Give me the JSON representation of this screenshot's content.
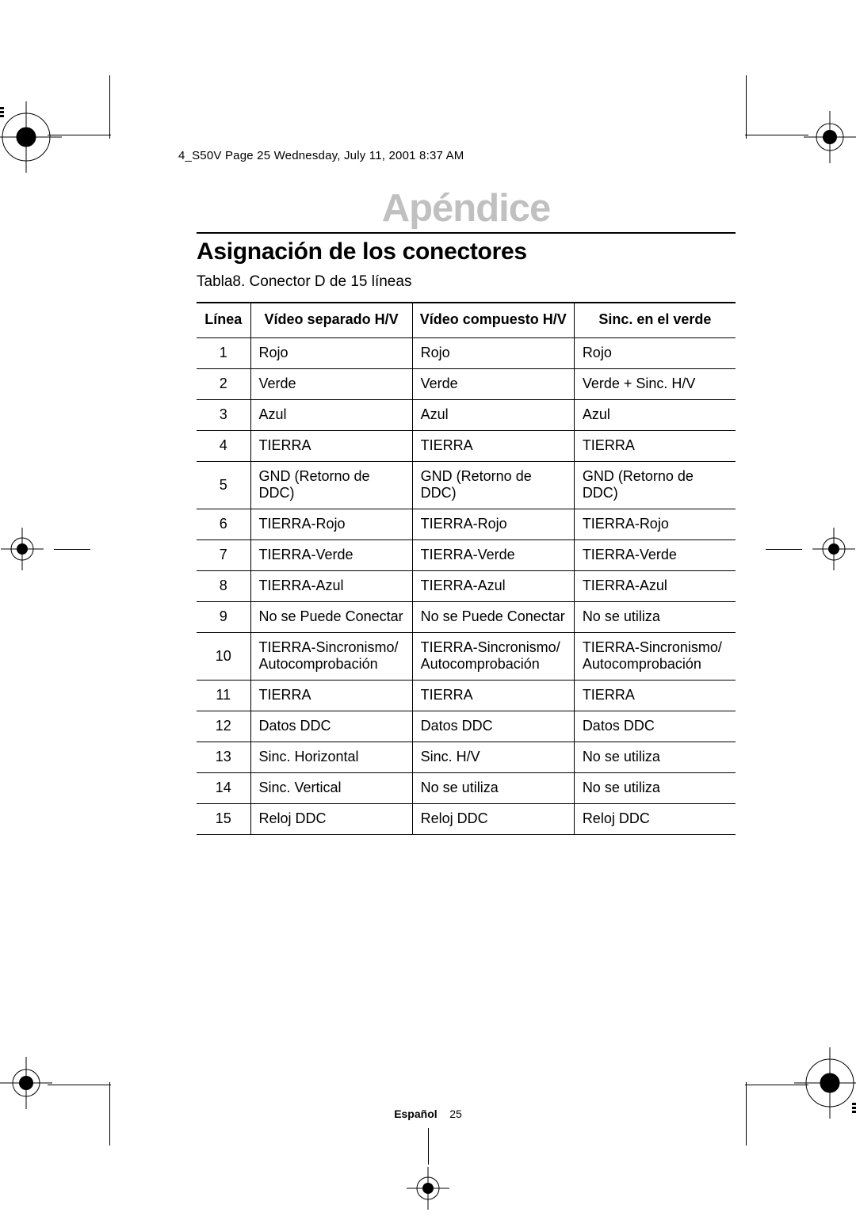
{
  "print_header": "4_S50V  Page 25  Wednesday, July 11, 2001  8:37 AM",
  "chapter_title": "Apéndice",
  "section_title": "Asignación de los conectores",
  "table_caption": "Tabla8.  Conector D de 15 líneas",
  "footer": {
    "lang": "Español",
    "page": "25"
  },
  "colors": {
    "chapter": "#c0c0c0",
    "text": "#000000",
    "rule": "#000000",
    "background": "#ffffff"
  },
  "table": {
    "columns": [
      "Línea",
      "Vídeo separado H/V",
      "Vídeo compuesto H/V",
      "Sinc. en el verde"
    ],
    "rows": [
      [
        "1",
        "Rojo",
        "Rojo",
        "Rojo"
      ],
      [
        "2",
        "Verde",
        "Verde",
        "Verde + Sinc. H/V"
      ],
      [
        "3",
        "Azul",
        "Azul",
        "Azul"
      ],
      [
        "4",
        "TIERRA",
        "TIERRA",
        "TIERRA"
      ],
      [
        "5",
        "GND (Retorno de DDC)",
        "GND (Retorno de DDC)",
        "GND (Retorno de DDC)"
      ],
      [
        "6",
        "TIERRA-Rojo",
        "TIERRA-Rojo",
        "TIERRA-Rojo"
      ],
      [
        "7",
        "TIERRA-Verde",
        "TIERRA-Verde",
        "TIERRA-Verde"
      ],
      [
        "8",
        "TIERRA-Azul",
        "TIERRA-Azul",
        "TIERRA-Azul"
      ],
      [
        "9",
        "No se Puede Conectar",
        "No se Puede Conectar",
        "No se utiliza"
      ],
      [
        "10",
        "TIERRA-Sincronismo/\nAutocomprobación",
        "TIERRA-Sincronismo/\nAutocomprobación",
        "TIERRA-Sincronismo/\nAutocomprobación"
      ],
      [
        "11",
        "TIERRA",
        "TIERRA",
        "TIERRA"
      ],
      [
        "12",
        "Datos DDC",
        "Datos DDC",
        "Datos DDC"
      ],
      [
        "13",
        "Sinc. Horizontal",
        "Sinc. H/V",
        "No se utiliza"
      ],
      [
        "14",
        "Sinc. Vertical",
        "No se utiliza",
        "No se utiliza"
      ],
      [
        "15",
        "Reloj DDC",
        "Reloj DDC",
        "Reloj DDC"
      ]
    ]
  }
}
